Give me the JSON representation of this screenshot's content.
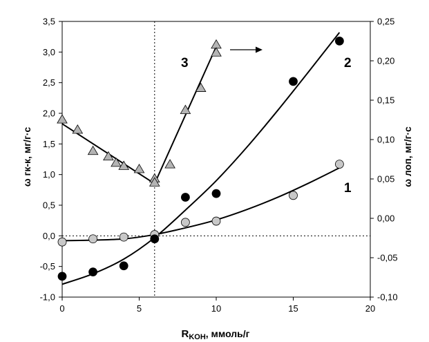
{
  "chart_data": {
    "type": "scatter",
    "xlabel_main": "R",
    "xlabel_sub": "KOH",
    "xlabel_rest": ", ммоль/г",
    "ylabel_left": "ω гк-к, мг/г·с",
    "ylabel_right": "ω лоп, мг/г·с",
    "xlim": [
      0,
      20
    ],
    "ylim_left": [
      -1.0,
      3.5
    ],
    "ylim_right": [
      -0.1,
      0.25
    ],
    "x_ticks": [
      "0",
      "5",
      "10",
      "15",
      "20"
    ],
    "y_left_ticks": [
      "-1,0",
      "-0,5",
      "0,0",
      "0,5",
      "1,0",
      "1,5",
      "2,0",
      "2,5",
      "3,0",
      "3,5"
    ],
    "y_right_ticks": [
      "-0,10",
      "-0,05",
      "0,00",
      "0,05",
      "0,10",
      "0,15",
      "0,20",
      "0,25"
    ],
    "grid": false,
    "reference_lines": {
      "vertical_x": 6,
      "horizontal_y": 0
    },
    "series": [
      {
        "label": "1",
        "axis": "left",
        "marker": "circle",
        "marker_color": "#c8c8c8",
        "x": [
          0,
          2,
          4,
          6,
          8,
          10,
          15,
          18
        ],
        "y": [
          -0.1,
          -0.05,
          -0.02,
          0.02,
          0.22,
          0.24,
          0.66,
          1.17
        ],
        "fit_x": [
          0,
          2,
          4,
          6,
          8,
          10,
          12,
          14,
          16,
          18
        ],
        "fit_y": [
          -0.08,
          -0.07,
          -0.05,
          0.02,
          0.13,
          0.26,
          0.43,
          0.63,
          0.86,
          1.11
        ]
      },
      {
        "label": "2",
        "axis": "left",
        "marker": "circle",
        "marker_color": "#000000",
        "x": [
          0,
          2,
          4,
          6,
          8,
          10,
          15,
          18
        ],
        "y": [
          -0.66,
          -0.59,
          -0.49,
          -0.05,
          0.63,
          0.69,
          2.52,
          3.18
        ],
        "fit_x": [
          0,
          2,
          4,
          6,
          8,
          10,
          12,
          14,
          16,
          18
        ],
        "fit_y": [
          -0.79,
          -0.62,
          -0.38,
          -0.03,
          0.42,
          0.9,
          1.45,
          2.05,
          2.68,
          3.32
        ]
      },
      {
        "label": "3",
        "axis": "right",
        "marker": "triangle",
        "marker_color": "#b4b4b4",
        "x": [
          0,
          1,
          2,
          3,
          3.5,
          4,
          5,
          6,
          6,
          7,
          8,
          9,
          10,
          10
        ],
        "y": [
          0.125,
          0.112,
          0.085,
          0.078,
          0.07,
          0.066,
          0.062,
          0.05,
          0.045,
          0.068,
          0.137,
          0.165,
          0.22,
          0.21
        ],
        "fit_segments": [
          {
            "x": [
              0,
              6
            ],
            "y": [
              0.12,
              0.044
            ]
          },
          {
            "x": [
              6,
              10
            ],
            "y": [
              0.044,
              0.218
            ]
          }
        ]
      }
    ],
    "annotations": [
      {
        "text": "1",
        "near_series": "1"
      },
      {
        "text": "2",
        "near_series": "2"
      },
      {
        "text": "3",
        "near_series": "3"
      },
      {
        "arrow": "right",
        "meaning": "series 3 uses right axis"
      }
    ]
  }
}
